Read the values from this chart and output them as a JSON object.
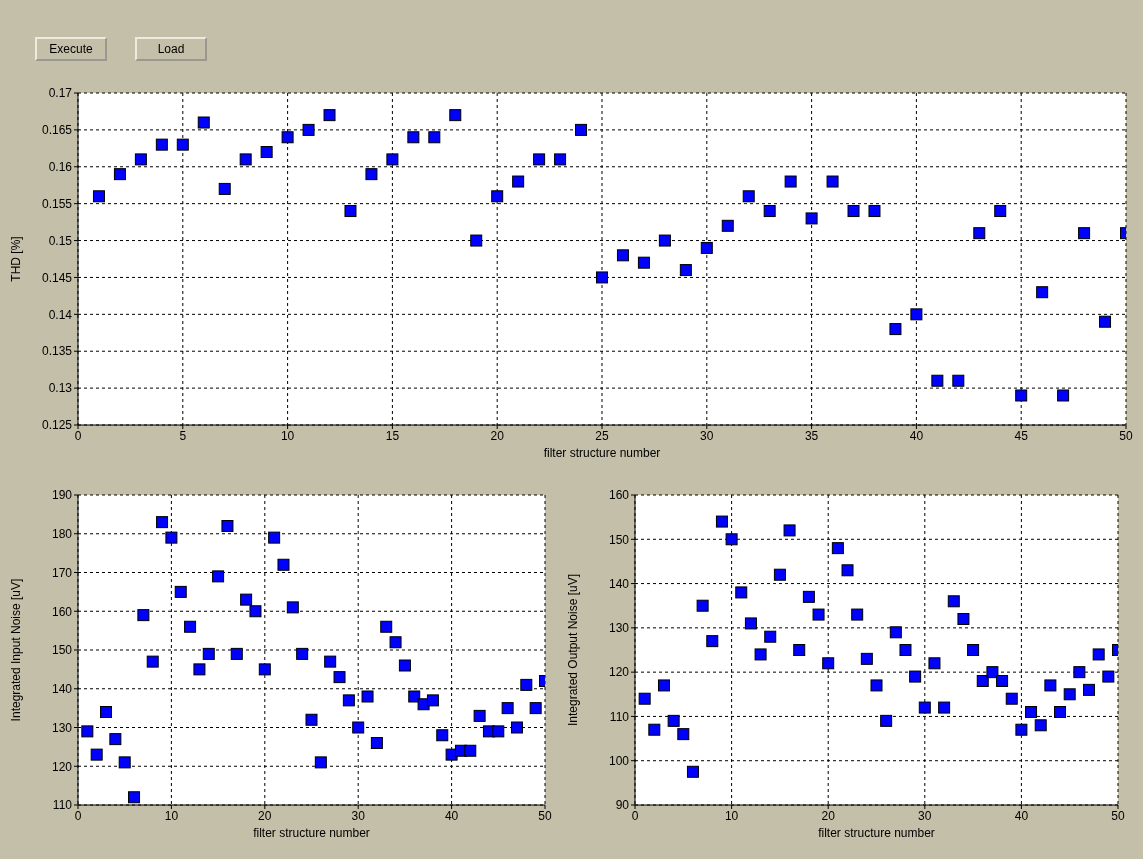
{
  "chart_data": [
    {
      "type": "scatter",
      "annotations": [
        "Execute",
        "Load"
      ],
      "xlabel": "filter structure number",
      "ylabel": "THD [%]",
      "x": [
        1,
        2,
        3,
        4,
        5,
        6,
        7,
        8,
        9,
        10,
        11,
        12,
        13,
        14,
        15,
        16,
        17,
        18,
        19,
        20,
        21,
        22,
        23,
        24,
        25,
        26,
        27,
        28,
        29,
        30,
        31,
        32,
        33,
        34,
        35,
        36,
        37,
        38,
        39,
        40,
        41,
        42,
        43,
        44,
        45,
        46,
        47,
        48,
        49,
        50
      ],
      "series": [
        {
          "color": "#0000ff",
          "values": [
            0.156,
            0.159,
            0.161,
            0.163,
            0.163,
            0.166,
            0.157,
            0.161,
            0.162,
            0.164,
            0.165,
            0.167,
            0.154,
            0.159,
            0.161,
            0.164,
            0.164,
            0.167,
            0.15,
            0.156,
            0.158,
            0.161,
            0.161,
            0.165,
            0.145,
            0.148,
            0.147,
            0.15,
            0.146,
            0.149,
            0.152,
            0.156,
            0.154,
            0.158,
            0.153,
            0.158,
            0.154,
            0.154,
            0.138,
            0.14,
            0.131,
            0.131,
            0.151,
            0.154,
            0.129,
            0.143,
            0.129,
            0.151,
            0.139,
            0.151
          ]
        }
      ],
      "xlim": [
        0,
        50
      ],
      "xticks": [
        0,
        5,
        10,
        15,
        20,
        25,
        30,
        35,
        40,
        45,
        50
      ],
      "ylim": [
        0.125,
        0.17
      ],
      "yticks": [
        0.125,
        0.13,
        0.135,
        0.14,
        0.145,
        0.15,
        0.155,
        0.16,
        0.165,
        0.17
      ],
      "grid": true,
      "marker": "square",
      "legend": false
    },
    {
      "type": "scatter",
      "xlabel": "filter structure number",
      "ylabel": "Integrated Input Noise [uV]",
      "x": [
        1,
        2,
        3,
        4,
        5,
        6,
        7,
        8,
        9,
        10,
        11,
        12,
        13,
        14,
        15,
        16,
        17,
        18,
        19,
        20,
        21,
        22,
        23,
        24,
        25,
        26,
        27,
        28,
        29,
        30,
        31,
        32,
        33,
        34,
        35,
        36,
        37,
        38,
        39,
        40,
        41,
        42,
        43,
        44,
        45,
        46,
        47,
        48,
        49,
        50
      ],
      "series": [
        {
          "color": "#0000ff",
          "values": [
            129,
            123,
            134,
            127,
            121,
            112,
            159,
            147,
            183,
            179,
            165,
            156,
            145,
            149,
            169,
            182,
            149,
            163,
            160,
            145,
            179,
            172,
            161,
            149,
            132,
            121,
            147,
            143,
            137,
            130,
            138,
            126,
            156,
            152,
            146,
            138,
            136,
            137,
            128,
            123,
            124,
            124,
            133,
            129,
            129,
            135,
            130,
            141,
            135,
            142
          ]
        }
      ],
      "xlim": [
        0,
        50
      ],
      "xticks": [
        0,
        10,
        20,
        30,
        40,
        50
      ],
      "ylim": [
        110,
        190
      ],
      "yticks": [
        110,
        120,
        130,
        140,
        150,
        160,
        170,
        180,
        190
      ],
      "grid": true,
      "marker": "square",
      "legend": false
    },
    {
      "type": "scatter",
      "xlabel": "filter structure number",
      "ylabel": "Integrated Output Noise [uV]",
      "x": [
        1,
        2,
        3,
        4,
        5,
        6,
        7,
        8,
        9,
        10,
        11,
        12,
        13,
        14,
        15,
        16,
        17,
        18,
        19,
        20,
        21,
        22,
        23,
        24,
        25,
        26,
        27,
        28,
        29,
        30,
        31,
        32,
        33,
        34,
        35,
        36,
        37,
        38,
        39,
        40,
        41,
        42,
        43,
        44,
        45,
        46,
        47,
        48,
        49,
        50
      ],
      "series": [
        {
          "color": "#0000ff",
          "values": [
            114,
            107,
            117,
            109,
            106,
            97.5,
            135,
            127,
            154,
            150,
            138,
            131,
            124,
            128,
            142,
            152,
            125,
            137,
            133,
            122,
            148,
            143,
            133,
            123,
            117,
            109,
            129,
            125,
            119,
            112,
            122,
            112,
            136,
            132,
            125,
            118,
            120,
            118,
            114,
            107,
            111,
            108,
            117,
            111,
            115,
            120,
            116,
            124,
            119,
            125
          ]
        }
      ],
      "xlim": [
        0,
        50
      ],
      "xticks": [
        0,
        10,
        20,
        30,
        40,
        50
      ],
      "ylim": [
        90,
        160
      ],
      "yticks": [
        90,
        100,
        110,
        120,
        130,
        140,
        150,
        160
      ],
      "grid": true,
      "marker": "square",
      "legend": false
    }
  ]
}
